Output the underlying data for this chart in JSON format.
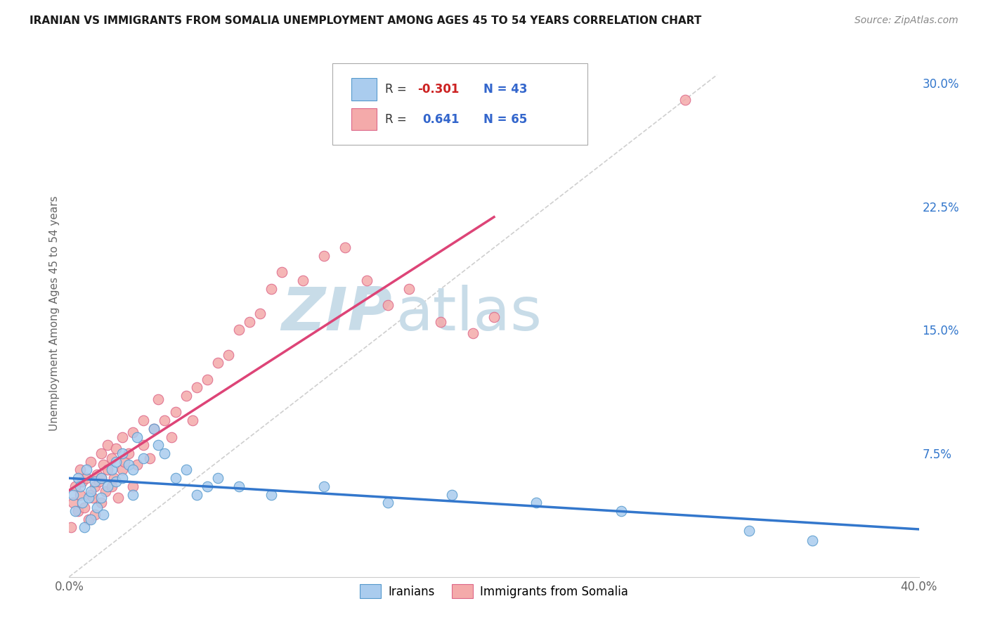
{
  "title": "IRANIAN VS IMMIGRANTS FROM SOMALIA UNEMPLOYMENT AMONG AGES 45 TO 54 YEARS CORRELATION CHART",
  "source": "Source: ZipAtlas.com",
  "ylabel": "Unemployment Among Ages 45 to 54 years",
  "xlim": [
    0.0,
    0.4
  ],
  "ylim": [
    0.0,
    0.32
  ],
  "xticks": [
    0.0,
    0.1,
    0.2,
    0.3,
    0.4
  ],
  "xticklabels": [
    "0.0%",
    "",
    "",
    "",
    "40.0%"
  ],
  "yticks": [
    0.0,
    0.075,
    0.15,
    0.225,
    0.3
  ],
  "yticklabels": [
    "",
    "7.5%",
    "15.0%",
    "22.5%",
    "30.0%"
  ],
  "title_color": "#1a1a1a",
  "source_color": "#888888",
  "background_color": "#ffffff",
  "grid_color": "#cccccc",
  "watermark_zip": "ZIP",
  "watermark_atlas": "atlas",
  "watermark_color_zip": "#c8dce8",
  "watermark_color_atlas": "#c8dce8",
  "legend_R_iranian": "-0.301",
  "legend_N_iranian": "43",
  "legend_R_somalia": "0.641",
  "legend_N_somalia": "65",
  "iranian_fill": "#aaccee",
  "somalia_fill": "#f4aaaa",
  "iranian_edge": "#5599cc",
  "somalia_edge": "#dd6688",
  "iranian_line_color": "#3377cc",
  "somalia_line_color": "#dd4477",
  "diagonal_color": "#bbbbbb",
  "iranians_x": [
    0.002,
    0.003,
    0.004,
    0.005,
    0.006,
    0.007,
    0.008,
    0.009,
    0.01,
    0.01,
    0.012,
    0.013,
    0.015,
    0.015,
    0.016,
    0.018,
    0.02,
    0.022,
    0.022,
    0.025,
    0.025,
    0.028,
    0.03,
    0.03,
    0.032,
    0.035,
    0.04,
    0.042,
    0.045,
    0.05,
    0.055,
    0.06,
    0.065,
    0.07,
    0.08,
    0.095,
    0.12,
    0.15,
    0.18,
    0.22,
    0.26,
    0.32,
    0.35
  ],
  "iranians_y": [
    0.05,
    0.04,
    0.06,
    0.055,
    0.045,
    0.03,
    0.065,
    0.048,
    0.052,
    0.035,
    0.058,
    0.042,
    0.06,
    0.048,
    0.038,
    0.055,
    0.065,
    0.07,
    0.058,
    0.075,
    0.06,
    0.068,
    0.065,
    0.05,
    0.085,
    0.072,
    0.09,
    0.08,
    0.075,
    0.06,
    0.065,
    0.05,
    0.055,
    0.06,
    0.055,
    0.05,
    0.055,
    0.045,
    0.05,
    0.045,
    0.04,
    0.028,
    0.022
  ],
  "somalia_x": [
    0.001,
    0.002,
    0.003,
    0.004,
    0.005,
    0.005,
    0.006,
    0.007,
    0.008,
    0.009,
    0.01,
    0.01,
    0.011,
    0.012,
    0.012,
    0.013,
    0.014,
    0.015,
    0.015,
    0.015,
    0.016,
    0.017,
    0.018,
    0.018,
    0.02,
    0.02,
    0.021,
    0.022,
    0.023,
    0.025,
    0.025,
    0.026,
    0.028,
    0.03,
    0.03,
    0.032,
    0.035,
    0.035,
    0.038,
    0.04,
    0.042,
    0.045,
    0.048,
    0.05,
    0.055,
    0.058,
    0.06,
    0.065,
    0.07,
    0.075,
    0.08,
    0.085,
    0.09,
    0.095,
    0.1,
    0.11,
    0.12,
    0.13,
    0.14,
    0.15,
    0.16,
    0.175,
    0.19,
    0.2,
    0.29
  ],
  "somalia_y": [
    0.03,
    0.045,
    0.055,
    0.04,
    0.05,
    0.065,
    0.058,
    0.042,
    0.06,
    0.035,
    0.05,
    0.07,
    0.048,
    0.055,
    0.038,
    0.062,
    0.058,
    0.045,
    0.06,
    0.075,
    0.068,
    0.052,
    0.065,
    0.08,
    0.055,
    0.072,
    0.06,
    0.078,
    0.048,
    0.065,
    0.085,
    0.07,
    0.075,
    0.055,
    0.088,
    0.068,
    0.08,
    0.095,
    0.072,
    0.09,
    0.108,
    0.095,
    0.085,
    0.1,
    0.11,
    0.095,
    0.115,
    0.12,
    0.13,
    0.135,
    0.15,
    0.155,
    0.16,
    0.175,
    0.185,
    0.18,
    0.195,
    0.2,
    0.18,
    0.165,
    0.175,
    0.155,
    0.148,
    0.158,
    0.29
  ]
}
